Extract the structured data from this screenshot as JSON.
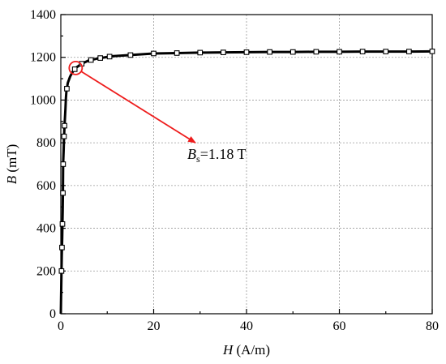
{
  "chart_data": {
    "type": "line",
    "xlabel": {
      "symbol": "H",
      "unit": " (A/m)"
    },
    "ylabel": {
      "symbol": "B",
      "unit": " (mT)"
    },
    "xlim": [
      0,
      80
    ],
    "ylim": [
      0,
      1400
    ],
    "xticks": [
      0,
      20,
      40,
      60,
      80
    ],
    "yticks": [
      0,
      200,
      400,
      600,
      800,
      1000,
      1200,
      1400
    ],
    "grid": true,
    "series": [
      {
        "x": [
          0,
          0.1,
          0.2,
          0.3,
          0.35,
          0.4,
          0.45,
          0.5,
          0.6,
          0.7,
          0.8,
          0.9,
          1.0,
          1.1,
          1.2,
          1.5,
          2.0,
          2.5,
          3.2,
          4.5,
          6.0,
          8.0,
          11,
          16,
          20,
          25,
          30,
          35,
          40,
          45,
          50,
          55,
          60,
          65,
          70,
          75,
          80
        ],
        "y": [
          0,
          135,
          265,
          355,
          420,
          480,
          565,
          700,
          760,
          830,
          880,
          920,
          960,
          1010,
          1040,
          1080,
          1110,
          1130,
          1150,
          1170,
          1185,
          1195,
          1205,
          1212,
          1218,
          1220,
          1222,
          1223,
          1224,
          1225,
          1225,
          1226,
          1226,
          1227,
          1227,
          1227,
          1228
        ]
      }
    ],
    "marker_x": [
      0.15,
      0.25,
      0.35,
      0.45,
      0.5,
      0.7,
      0.8,
      1.3,
      3.0,
      4.5,
      6.5,
      8.5,
      10.5,
      15,
      20,
      25,
      30,
      35,
      40,
      45,
      50,
      55,
      60,
      65,
      70,
      75,
      80
    ],
    "annotation": {
      "symbol": "B",
      "subscript": "s",
      "text": "=1.18 T",
      "circle_x": 3.2,
      "circle_y": 1150,
      "arrow_to_x": 29,
      "arrow_to_y": 800,
      "color": "#ee1c1c"
    }
  }
}
